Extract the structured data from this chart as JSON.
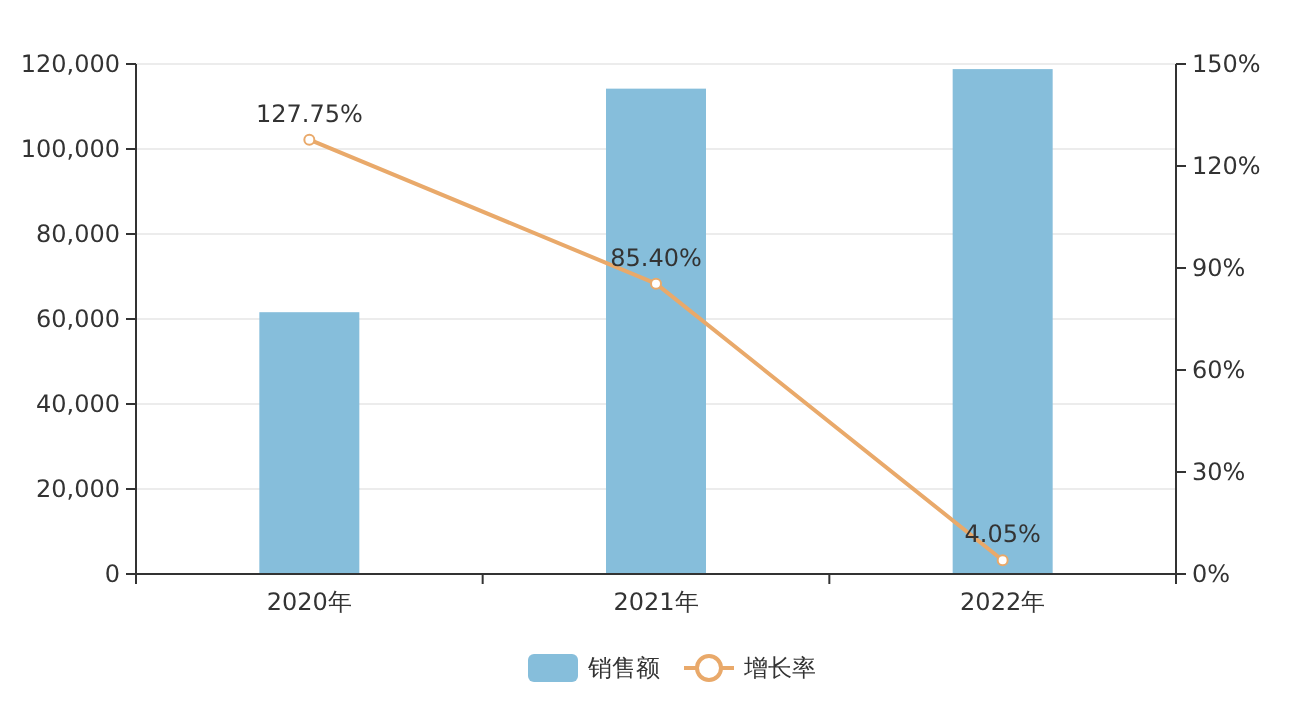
{
  "chart_data": {
    "type": "bar",
    "categories": [
      "2020年",
      "2021年",
      "2022年"
    ],
    "series": [
      {
        "name": "销售额",
        "color": "#86bedb",
        "values": [
          61600,
          114200,
          118800
        ]
      },
      {
        "name": "增长率",
        "type": "line",
        "axis": "y2",
        "color": "#e9a96a",
        "marker": "circle",
        "values": [
          127.75,
          85.4,
          4.05
        ],
        "value_labels": [
          "127.75%",
          "85.40%",
          "4.05%"
        ]
      }
    ],
    "ylim": [
      0,
      120000
    ],
    "yticks": [
      {
        "value": 0,
        "label": "0"
      },
      {
        "value": 20000,
        "label": "20,000"
      },
      {
        "value": 40000,
        "label": "40,000"
      },
      {
        "value": 60000,
        "label": "60,000"
      },
      {
        "value": 80000,
        "label": "80,000"
      },
      {
        "value": 100000,
        "label": "100,000"
      },
      {
        "value": 120000,
        "label": "120,000"
      }
    ],
    "y2lim": [
      0,
      150
    ],
    "y2ticks": [
      {
        "value": 0,
        "label": "0%"
      },
      {
        "value": 30,
        "label": "30%"
      },
      {
        "value": 60,
        "label": "60%"
      },
      {
        "value": 90,
        "label": "90%"
      },
      {
        "value": 120,
        "label": "120%"
      },
      {
        "value": 150,
        "label": "150%"
      }
    ],
    "grid": "y",
    "legend": "bottom"
  }
}
